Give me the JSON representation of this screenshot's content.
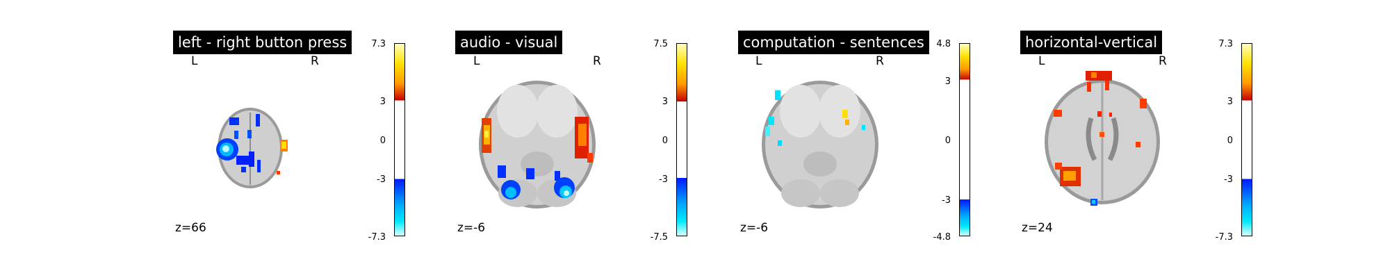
{
  "colors": {
    "hot": [
      "#c80000",
      "#ff3a00",
      "#ff9a00",
      "#ffe200",
      "#ffffc0"
    ],
    "cold": [
      "#0018ff",
      "#005cff",
      "#00a8ff",
      "#00eaff",
      "#d8ffff"
    ],
    "brain_outer": "#9a9a9a",
    "brain_inner": "#cfcfcf"
  },
  "panels": [
    {
      "title": "left - right button press",
      "left_label": "L",
      "right_label": "R",
      "z_label": "z=66",
      "brain": "small-axial-slice",
      "colorbar": {
        "max": "7.3",
        "upper_threshold": "3",
        "zero": "0",
        "lower_threshold": "-3",
        "min": "-7.3",
        "hot": true,
        "cold": true,
        "vmax": 7.3,
        "threshold": 3
      }
    },
    {
      "title": "audio - visual",
      "left_label": "L",
      "right_label": "R",
      "z_label": "z=-6",
      "brain": "large-axial-slice",
      "colorbar": {
        "max": "7.5",
        "upper_threshold": "3",
        "zero": "0",
        "lower_threshold": "-3",
        "min": "-7.5",
        "hot": true,
        "cold": true,
        "vmax": 7.5,
        "threshold": 3
      }
    },
    {
      "title": "computation - sentences",
      "left_label": "L",
      "right_label": "R",
      "z_label": "z=-6",
      "brain": "large-axial-slice",
      "colorbar": {
        "max": "4.8",
        "upper_threshold": "3",
        "zero": "0",
        "lower_threshold": "-3",
        "min": "-4.8",
        "hot": true,
        "cold": true,
        "vmax": 4.8,
        "threshold": 3
      }
    },
    {
      "title": "horizontal-vertical",
      "left_label": "L",
      "right_label": "R",
      "z_label": "z=24",
      "brain": "mid-axial-slice",
      "colorbar": {
        "max": "7.3",
        "upper_threshold": "3",
        "zero": "0",
        "lower_threshold": "-3",
        "min": "-7.3",
        "hot": true,
        "cold": true,
        "vmax": 7.3,
        "threshold": 3
      }
    }
  ]
}
